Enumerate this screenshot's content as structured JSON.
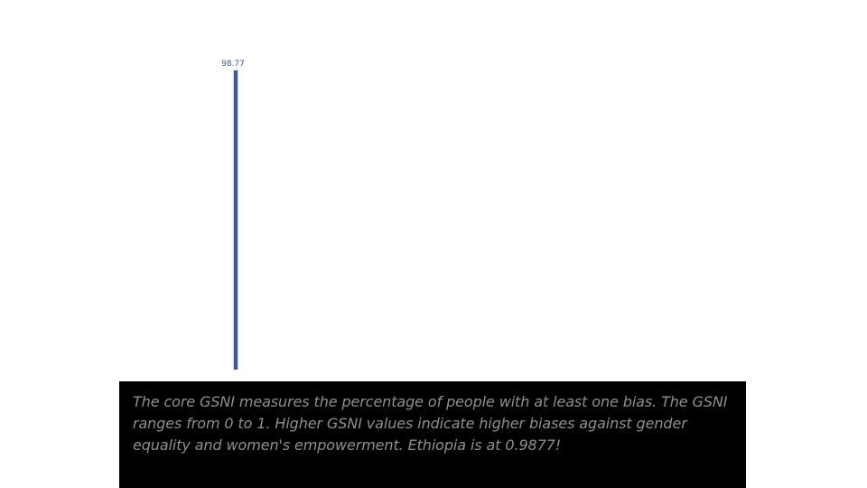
{
  "chart_data": {
    "type": "bar",
    "categories": [
      ""
    ],
    "values": [
      98.77
    ],
    "data_labels": [
      "98.77"
    ],
    "ylim": [
      0,
      100
    ],
    "grid": false,
    "legend": "none",
    "colors": {
      "bar": "#3a5a95",
      "label": "#3a5a95"
    }
  },
  "caption": {
    "text": "The core GSNI measures the percentage of people with at least one bias. The GSNI ranges from 0 to 1. Higher GSNI values indicate higher biases against gender equality and women's empowerment. Ethiopia is at 0.9877!",
    "colors": {
      "background": "#000000",
      "text": "#8f8f8f"
    }
  }
}
